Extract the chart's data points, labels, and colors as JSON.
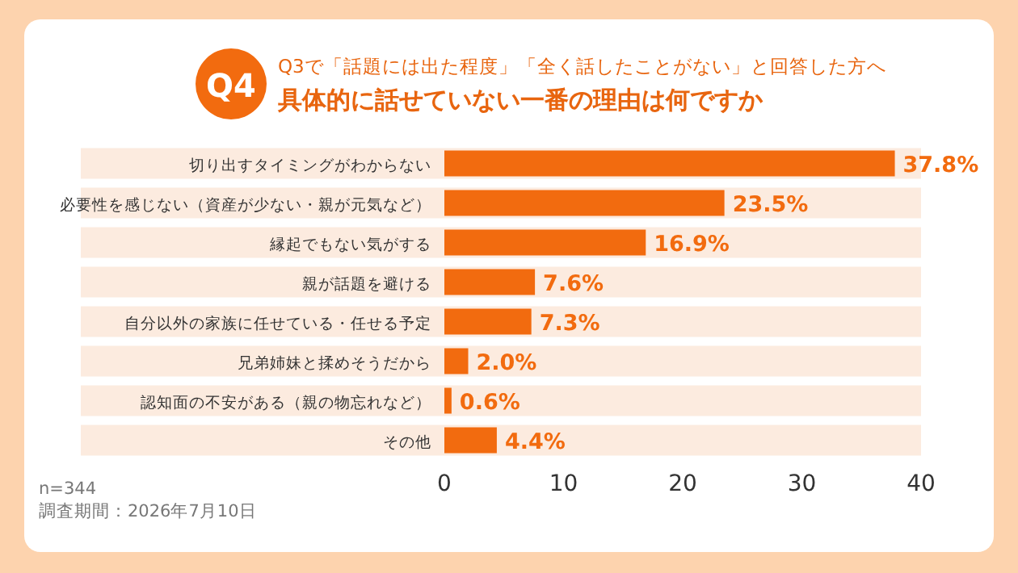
{
  "chart_data": {
    "type": "bar",
    "orientation": "horizontal",
    "title": "具体的に話せていない一番の理由は何ですか",
    "subtitle": "Q3で「話題には出た程度」「全く話したことがない」と回答した方へ",
    "categories": [
      "切り出すタイミングがわからない",
      "必要性を感じない（資産が少ない・親が元気など）",
      "縁起でもない気がする",
      "親が話題を避ける",
      "自分以外の家族に任せている・任せる予定",
      "兄弟姉妹と揉めそうだから",
      "認知面の不安がある（親の物忘れなど）",
      "その他"
    ],
    "values": [
      37.8,
      23.5,
      16.9,
      7.6,
      7.3,
      2.0,
      0.6,
      4.4
    ],
    "value_labels": [
      "37.8%",
      "23.5%",
      "16.9%",
      "7.6%",
      "7.3%",
      "2.0%",
      "0.6%",
      "4.4%"
    ],
    "color": "#f26b0f",
    "xlim": [
      0,
      40
    ],
    "xticks": [
      0,
      10,
      20,
      30,
      40
    ],
    "grid": false,
    "annotations": [
      "Q4",
      "n=344",
      "調査期間：2026年7月10日"
    ]
  }
}
